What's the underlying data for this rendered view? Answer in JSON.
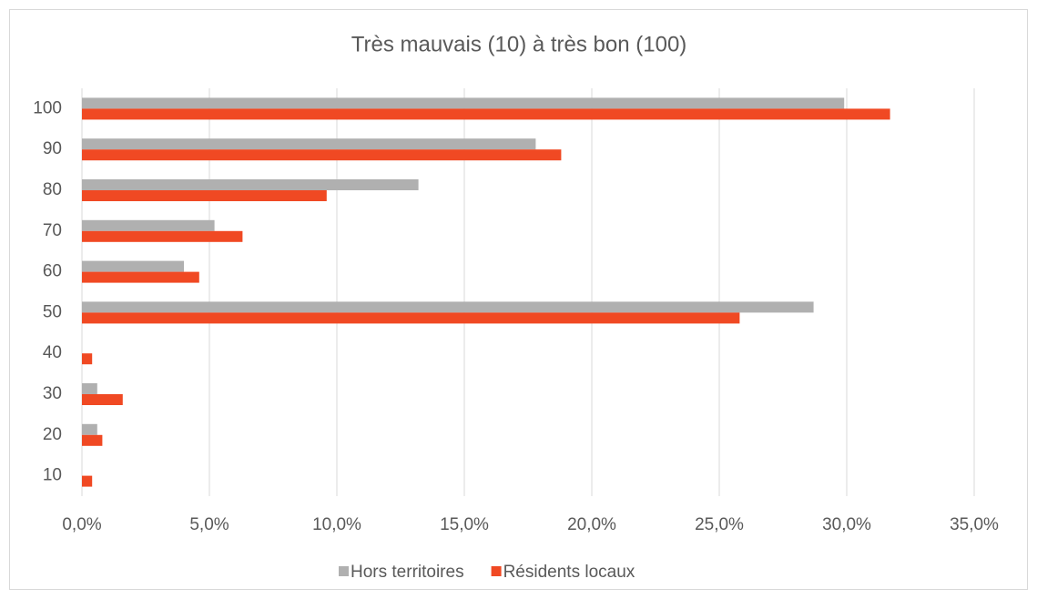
{
  "chart_data": {
    "type": "bar",
    "orientation": "horizontal",
    "title": "Très mauvais (10) à très bon (100)",
    "categories": [
      "100",
      "90",
      "80",
      "70",
      "60",
      "50",
      "40",
      "30",
      "20",
      "10"
    ],
    "series": [
      {
        "name": "Hors territoires",
        "color": "#b0b0b0",
        "values": [
          29.9,
          17.8,
          13.2,
          5.2,
          4.0,
          28.7,
          0,
          0.6,
          0.6,
          0
        ]
      },
      {
        "name": "Résidents locaux",
        "color": "#f04923",
        "values": [
          31.7,
          18.8,
          9.6,
          6.3,
          4.6,
          25.8,
          0.4,
          1.6,
          0.8,
          0.4
        ]
      }
    ],
    "xlim": [
      0,
      35
    ],
    "xticks": [
      {
        "value": 0,
        "label": "0,0%"
      },
      {
        "value": 5,
        "label": "5,0%"
      },
      {
        "value": 10,
        "label": "10,0%"
      },
      {
        "value": 15,
        "label": "15,0%"
      },
      {
        "value": 20,
        "label": "20,0%"
      },
      {
        "value": 25,
        "label": "25,0%"
      },
      {
        "value": 30,
        "label": "30,0%"
      },
      {
        "value": 35,
        "label": "35,0%"
      }
    ],
    "grid": true,
    "legend": "bottom"
  }
}
